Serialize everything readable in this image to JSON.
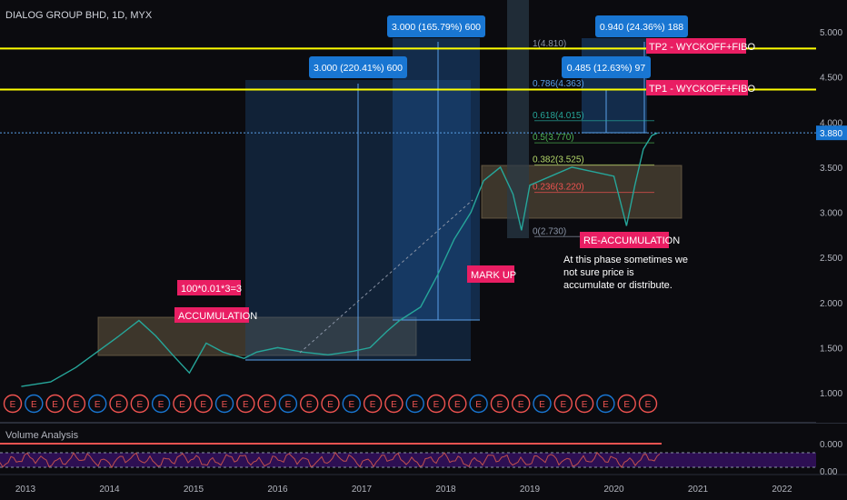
{
  "header": {
    "title": "DIALOG GROUP BHD, 1D, MYX"
  },
  "volume_panel": {
    "title": "Volume Analysis",
    "ticks": [
      "0.000",
      "0.00"
    ]
  },
  "colors": {
    "background": "#0b0b0f",
    "candle_up": "#26a69a",
    "candle_down": "#ef5350",
    "tp_line": "#ffff00",
    "label_box": "#1976d2",
    "tag": "#e91e63",
    "zone": "#7b6a4e"
  },
  "chart_data": {
    "type": "line",
    "title": "DIALOG GROUP BHD, 1D, MYX",
    "xlabel": "",
    "ylabel": "",
    "x_ticks": [
      "2013",
      "2014",
      "2015",
      "2016",
      "2017",
      "2018",
      "2019",
      "2020",
      "2021",
      "2022"
    ],
    "y_ticks": [
      "5.000",
      "4.500",
      "4.000",
      "3.500",
      "3.000",
      "2.500",
      "2.000",
      "1.500",
      "1.000"
    ],
    "ylim": [
      0.7,
      5.25
    ],
    "series": [
      {
        "x": [
          2012.95,
          2013.3,
          2013.6,
          2013.85,
          2014.1,
          2014.35,
          2014.55,
          2014.75,
          2014.95,
          2015.15,
          2015.35,
          2015.6,
          2015.75,
          2016.0,
          2016.3,
          2016.6,
          2016.9,
          2017.1,
          2017.3,
          2017.45,
          2017.7,
          2017.9,
          2018.1,
          2018.3,
          2018.45,
          2018.65,
          2018.8,
          2018.9,
          2019.0,
          2019.25,
          2019.5,
          2019.75,
          2020.0,
          2020.15,
          2020.25,
          2020.35,
          2020.45,
          2020.52
        ],
        "values": [
          1.07,
          1.12,
          1.28,
          1.45,
          1.62,
          1.8,
          1.63,
          1.42,
          1.22,
          1.55,
          1.45,
          1.38,
          1.45,
          1.5,
          1.45,
          1.42,
          1.46,
          1.5,
          1.68,
          1.8,
          1.95,
          2.3,
          2.7,
          3.0,
          3.35,
          3.5,
          3.2,
          2.8,
          3.3,
          3.4,
          3.5,
          3.45,
          3.4,
          2.85,
          3.3,
          3.7,
          3.85,
          3.88
        ]
      }
    ],
    "tp_lines": [
      {
        "name": "TP2 - WYCKOFF+FIBO",
        "value": 4.815,
        "label": "4.815"
      },
      {
        "name": "TP1 - WYCKOFF+FIBO",
        "value": 4.36,
        "label": "4.360"
      }
    ],
    "current_price": {
      "value": 3.88,
      "label": "3.880"
    },
    "fib_levels": [
      {
        "level": "1",
        "price": 4.81,
        "text": "1(4.810)"
      },
      {
        "level": "0.786",
        "price": 4.363,
        "text": "0.786(4.363)"
      },
      {
        "level": "0.618",
        "price": 4.015,
        "text": "0.618(4.015)"
      },
      {
        "level": "0.5",
        "price": 3.77,
        "text": "0.5(3.770)"
      },
      {
        "level": "0.382",
        "price": 3.525,
        "text": "0.382(3.525)"
      },
      {
        "level": "0.236",
        "price": 3.22,
        "text": "0.236(3.220)"
      },
      {
        "level": "0",
        "price": 2.73,
        "text": "0(2.730)"
      }
    ],
    "measure_labels": [
      {
        "text": "3.000 (165.79%) 600"
      },
      {
        "text": "3.000 (220.41%) 600"
      },
      {
        "text": "0.940 (24.36%) 188"
      },
      {
        "text": "0.485 (12.63%) 97"
      }
    ],
    "annotations": {
      "accumulation": "ACCUMULATION",
      "formula": "100*0.01*3=3",
      "markup": "MARK UP",
      "reaccumulation": "RE-ACCUMULATION",
      "note": "At this phase sometimes we not sure price is accumulate or distribute."
    },
    "earnings_marker": "E",
    "grid": false,
    "legend": "none"
  }
}
